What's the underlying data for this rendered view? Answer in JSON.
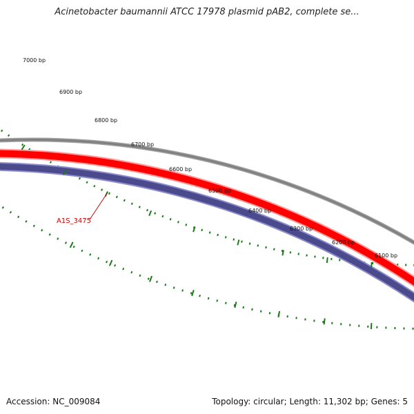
{
  "title": "Acinetobacter baumannii ATCC 17978 plasmid pAB2, complete se...",
  "footer": {
    "accession": "Accession: NC_009084",
    "summary": "Topology: circular; Length: 11,302 bp; Genes: 5"
  },
  "map": {
    "ticks": [
      {
        "label": "7000 bp"
      },
      {
        "label": "6900 bp"
      },
      {
        "label": "6800 bp"
      },
      {
        "label": "6700 bp"
      },
      {
        "label": "6600 bp"
      },
      {
        "label": "6500 bp"
      },
      {
        "label": "6400 bp"
      },
      {
        "label": "6300 bp"
      },
      {
        "label": "6200 bp"
      },
      {
        "label": "6100 bp"
      }
    ],
    "gene_label": "A1S_3475",
    "colors": {
      "backbone": "#808080",
      "forward_feature": "#ff0000",
      "reverse_feature": "#4a4a8c",
      "ticks": "#1a7a1a",
      "gene_label": "#cc0000"
    }
  }
}
